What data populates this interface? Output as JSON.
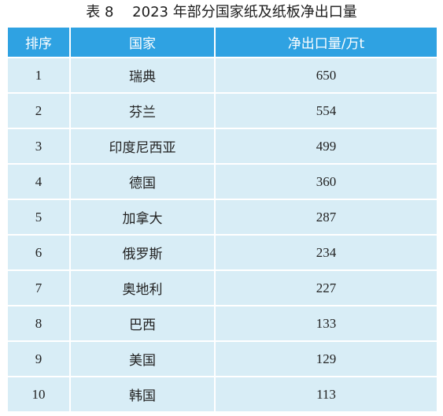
{
  "caption": "表 8　 2023 年部分国家纸及纸板净出口量",
  "table": {
    "headers": [
      "排序",
      "国家",
      "净出口量/万t"
    ],
    "rows": [
      {
        "rank": "1",
        "country": "瑞典",
        "value": "650"
      },
      {
        "rank": "2",
        "country": "芬兰",
        "value": "554"
      },
      {
        "rank": "3",
        "country": "印度尼西亚",
        "value": "499"
      },
      {
        "rank": "4",
        "country": "德国",
        "value": "360"
      },
      {
        "rank": "5",
        "country": "加拿大",
        "value": "287"
      },
      {
        "rank": "6",
        "country": "俄罗斯",
        "value": "234"
      },
      {
        "rank": "7",
        "country": "奥地利",
        "value": "227"
      },
      {
        "rank": "8",
        "country": "巴西",
        "value": "133"
      },
      {
        "rank": "9",
        "country": "美国",
        "value": "129"
      },
      {
        "rank": "10",
        "country": "韩国",
        "value": "113"
      }
    ]
  },
  "colors": {
    "header_bg": "#2fa2e2",
    "header_text": "#ffffff",
    "cell_bg": "#d8edf6"
  }
}
